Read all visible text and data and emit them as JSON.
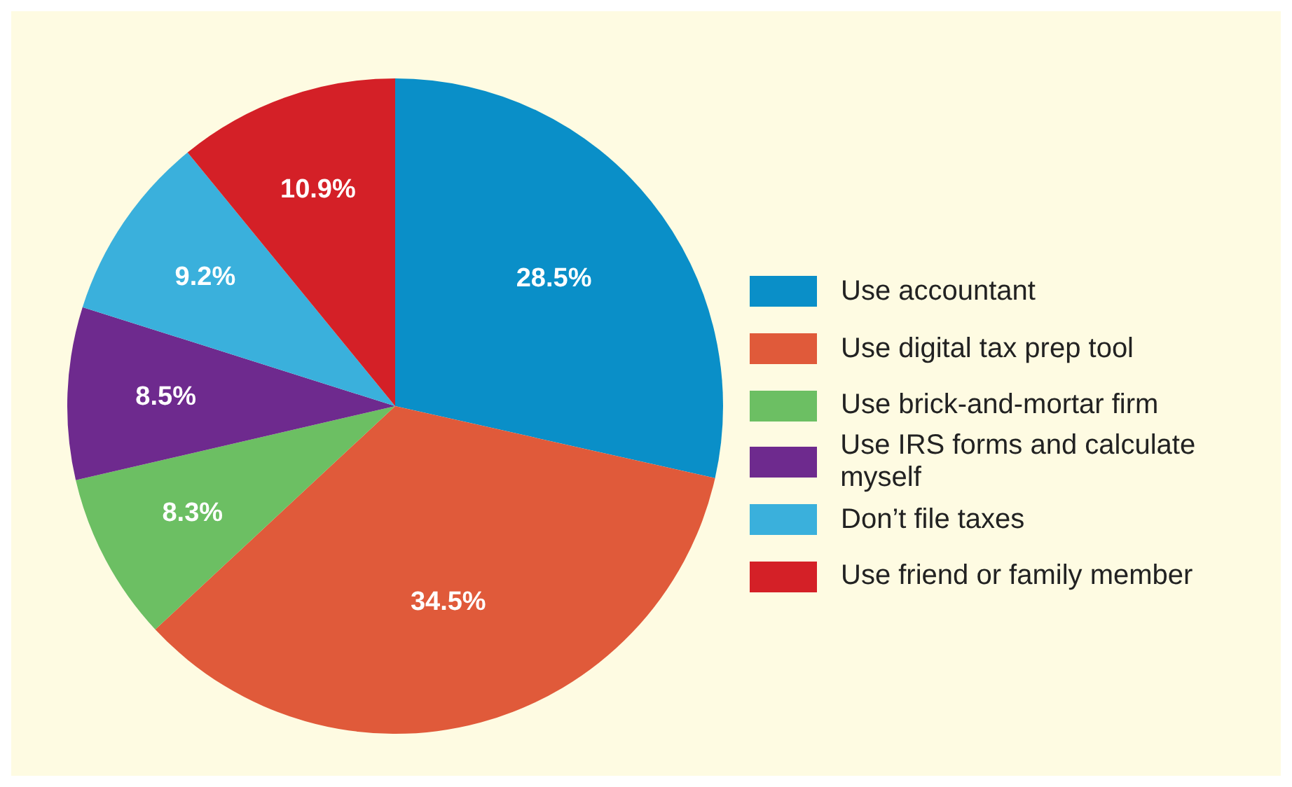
{
  "chart_data": {
    "type": "pie",
    "categories": [
      "Use accountant",
      "Use digital tax prep tool",
      "Use brick-and-mortar firm",
      "Use IRS forms and calculate myself",
      "Don’t file taxes",
      "Use friend or family member"
    ],
    "values": [
      28.5,
      34.5,
      8.3,
      8.5,
      9.2,
      10.9
    ],
    "colors": [
      "#0a8fc8",
      "#e05a3a",
      "#6cbf63",
      "#6e2a8e",
      "#3ab0dc",
      "#d42027"
    ],
    "value_labels": [
      "28.5%",
      "34.5%",
      "8.3%",
      "8.5%",
      "9.2%",
      "10.9%"
    ],
    "legend": "right"
  }
}
